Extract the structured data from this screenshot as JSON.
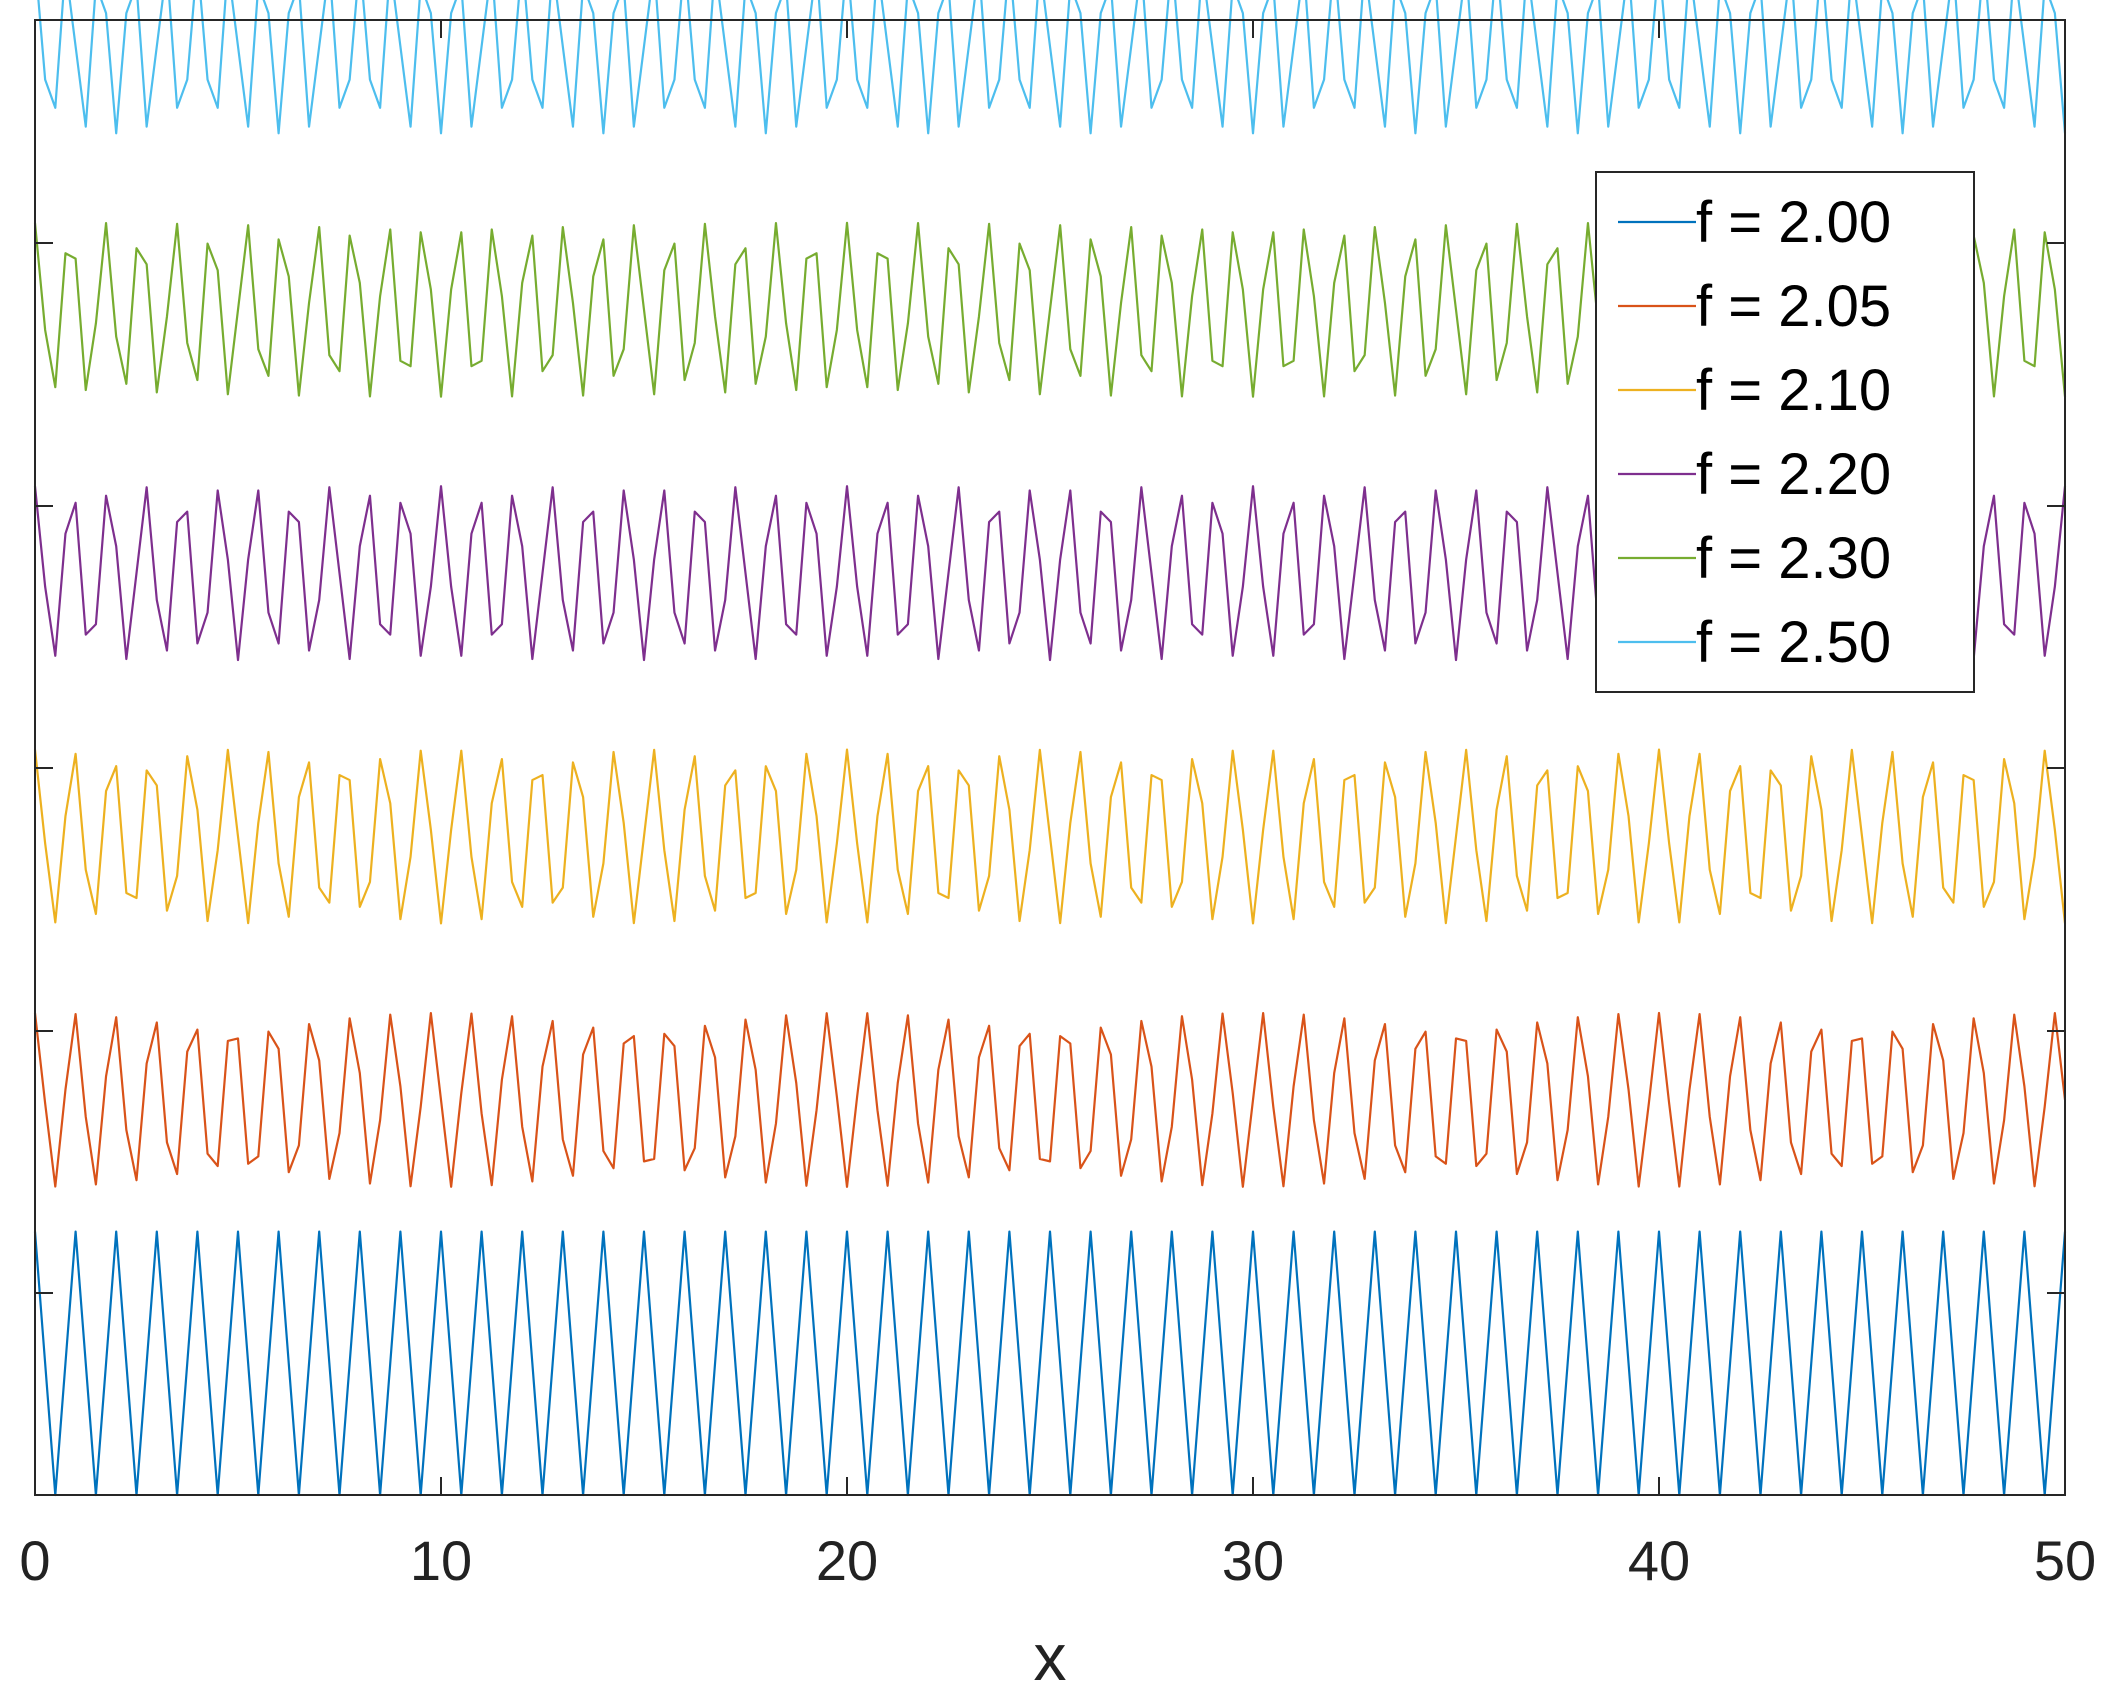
{
  "chart_data": {
    "type": "line",
    "title": "",
    "xlabel": "x",
    "ylabel": "",
    "xlim": [
      0,
      50
    ],
    "x_ticks": [
      0,
      10,
      20,
      30,
      40,
      50
    ],
    "x_tick_labels": [
      "0",
      "10",
      "20",
      "30",
      "40",
      "50"
    ],
    "y_tick_count": 5,
    "grid": false,
    "legend_position": "top-right",
    "x_sampling": {
      "start": 0,
      "end": 50,
      "step": 0.25
    },
    "formula": "cos(pi * f * x)",
    "series": [
      {
        "name": "f = 2.00",
        "f": 2.0,
        "color": "#0072BD",
        "offset": 0,
        "amplitude": 0.5
      },
      {
        "name": "f = 2.05",
        "f": 2.05,
        "color": "#D95319",
        "offset": 1,
        "amplitude": 0.33
      },
      {
        "name": "f = 2.10",
        "f": 2.1,
        "color": "#EDB120",
        "offset": 2,
        "amplitude": 0.33
      },
      {
        "name": "f = 2.20",
        "f": 2.2,
        "color": "#7E2F8E",
        "offset": 3,
        "amplitude": 0.33
      },
      {
        "name": "f = 2.30",
        "f": 2.3,
        "color": "#77AC30",
        "offset": 4,
        "amplitude": 0.33
      },
      {
        "name": "f = 2.50",
        "f": 2.5,
        "color": "#4DBEEE",
        "offset": 5,
        "amplitude": 0.33
      }
    ]
  }
}
